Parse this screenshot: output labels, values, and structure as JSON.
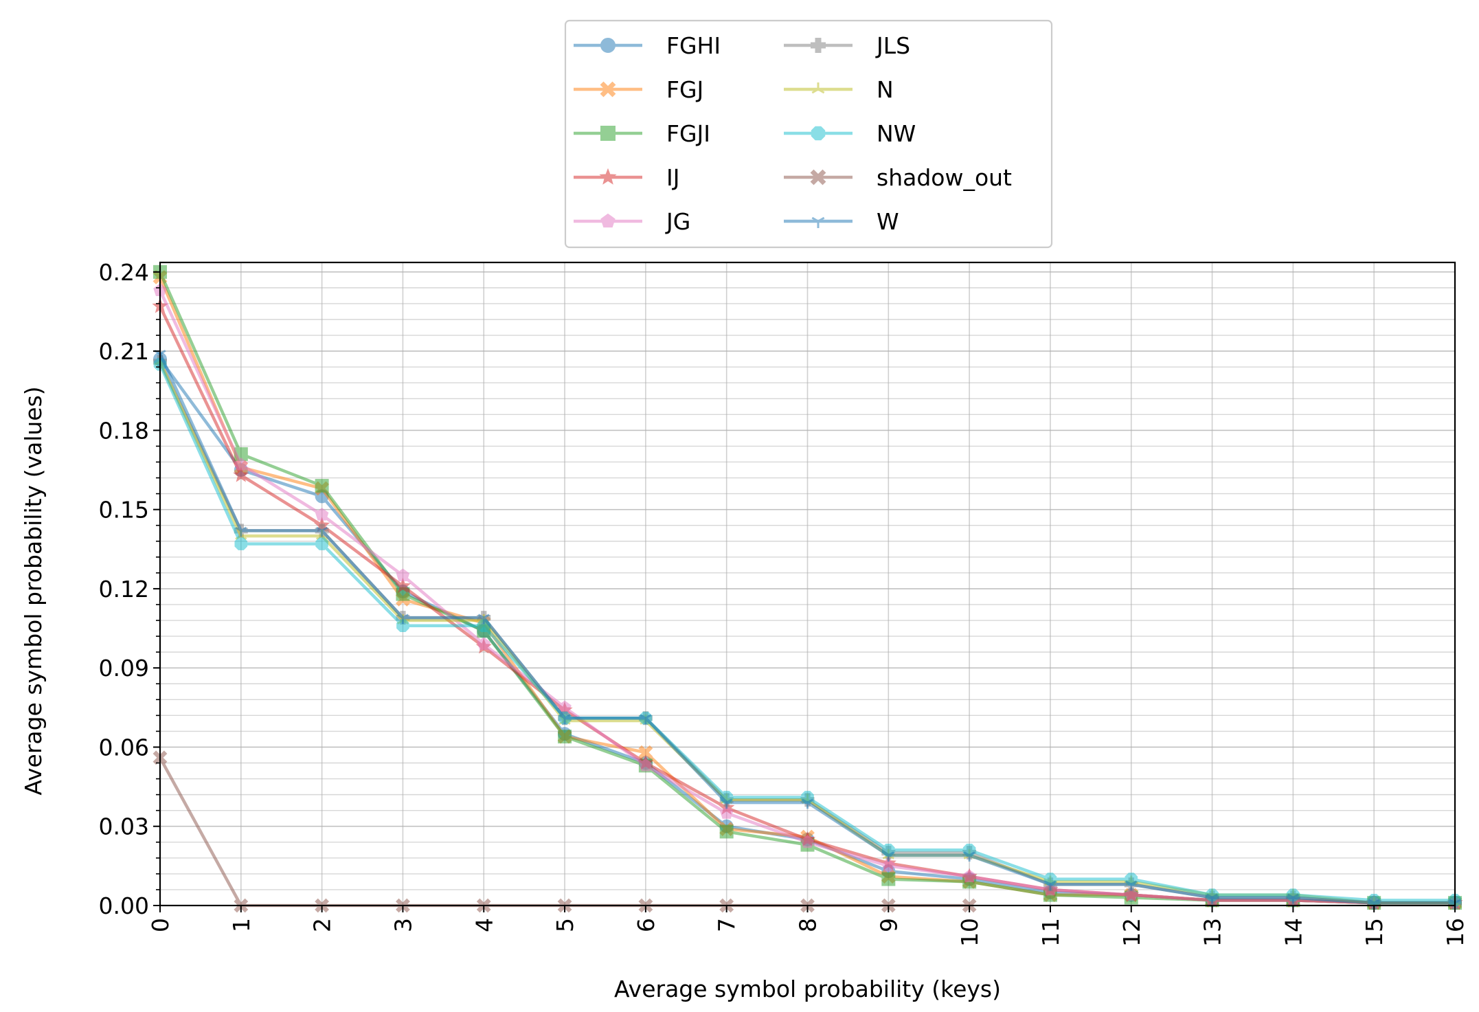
{
  "chart_data": {
    "type": "line",
    "xlabel": "Average symbol probability (keys)",
    "ylabel": "Average symbol probability (values)",
    "xlim": [
      0,
      16
    ],
    "ylim": [
      0,
      0.2436
    ],
    "x": [
      0,
      1,
      2,
      3,
      4,
      5,
      6,
      7,
      8,
      9,
      10,
      11,
      12,
      13,
      14,
      15,
      16
    ],
    "x_ticks": [
      "0",
      "1",
      "2",
      "3",
      "4",
      "5",
      "6",
      "7",
      "8",
      "9",
      "10",
      "11",
      "12",
      "13",
      "14",
      "15",
      "16"
    ],
    "y_ticks": [
      "0.00",
      "0.03",
      "0.06",
      "0.09",
      "0.12",
      "0.15",
      "0.18",
      "0.21",
      "0.24"
    ],
    "y_tick_values": [
      0,
      0.03,
      0.06,
      0.09,
      0.12,
      0.15,
      0.18,
      0.21,
      0.24
    ],
    "y_minor_step": 0.006,
    "grid": true,
    "legend_position": "top-center",
    "legend_columns": 2,
    "series": [
      {
        "name": "FGHI",
        "color": "#1f77b4",
        "marker": "circle",
        "values": [
          0.207,
          0.165,
          0.155,
          0.119,
          0.104,
          0.065,
          0.054,
          0.03,
          0.025,
          0.013,
          0.01,
          0.005,
          0.004,
          0.002,
          0.002,
          0.001,
          0.001
        ]
      },
      {
        "name": "FGJ",
        "color": "#ff7f0e",
        "marker": "x-filled",
        "values": [
          0.238,
          0.166,
          0.158,
          0.116,
          0.107,
          0.064,
          0.058,
          0.029,
          0.026,
          0.011,
          0.009,
          0.004,
          0.004,
          0.002,
          0.002,
          0.001,
          0.001
        ]
      },
      {
        "name": "FGJI",
        "color": "#2ca02c",
        "marker": "square",
        "values": [
          0.24,
          0.171,
          0.159,
          0.118,
          0.104,
          0.064,
          0.053,
          0.028,
          0.023,
          0.01,
          0.009,
          0.004,
          0.003,
          0.002,
          0.002,
          0.001,
          0.001
        ]
      },
      {
        "name": "IJ",
        "color": "#d62728",
        "marker": "star",
        "values": [
          0.227,
          0.163,
          0.144,
          0.121,
          0.098,
          0.074,
          0.054,
          0.037,
          0.025,
          0.016,
          0.011,
          0.006,
          0.004,
          0.002,
          0.002,
          0.001,
          0.001
        ]
      },
      {
        "name": "JG",
        "color": "#e377c2",
        "marker": "pentagon",
        "values": [
          0.233,
          0.167,
          0.148,
          0.125,
          0.099,
          0.075,
          0.053,
          0.035,
          0.024,
          0.015,
          0.011,
          0.006,
          0.004,
          0.002,
          0.002,
          0.001,
          0.001
        ]
      },
      {
        "name": "JLS",
        "color": "#7f7f7f",
        "marker": "plus-filled",
        "values": [
          0.206,
          0.142,
          0.142,
          0.109,
          0.109,
          0.071,
          0.071,
          0.04,
          0.04,
          0.02,
          0.02,
          0.008,
          0.008,
          0.003,
          0.003,
          0.001,
          0.001
        ]
      },
      {
        "name": "N",
        "color": "#bcbd22",
        "marker": "tri-up",
        "values": [
          0.206,
          0.14,
          0.14,
          0.108,
          0.108,
          0.07,
          0.07,
          0.04,
          0.04,
          0.019,
          0.019,
          0.009,
          0.009,
          0.004,
          0.004,
          0.001,
          0.001
        ]
      },
      {
        "name": "NW",
        "color": "#17becf",
        "marker": "octagon",
        "values": [
          0.205,
          0.137,
          0.137,
          0.106,
          0.106,
          0.071,
          0.071,
          0.041,
          0.041,
          0.021,
          0.021,
          0.01,
          0.01,
          0.004,
          0.004,
          0.002,
          0.002
        ]
      },
      {
        "name": "shadow_out",
        "color": "#8c564b",
        "marker": "x-filled",
        "values": [
          0.056,
          0.0,
          0.0,
          0.0,
          0.0,
          0.0,
          0.0,
          0.0,
          0.0,
          0.0,
          0.0,
          null,
          null,
          null,
          null,
          null,
          null
        ]
      },
      {
        "name": "W",
        "color": "#1f77b4",
        "marker": "tri-down",
        "values": [
          0.209,
          0.142,
          0.142,
          0.109,
          0.109,
          0.071,
          0.071,
          0.039,
          0.039,
          0.019,
          0.019,
          0.008,
          0.008,
          0.003,
          0.003,
          0.001,
          0.001
        ]
      }
    ]
  }
}
